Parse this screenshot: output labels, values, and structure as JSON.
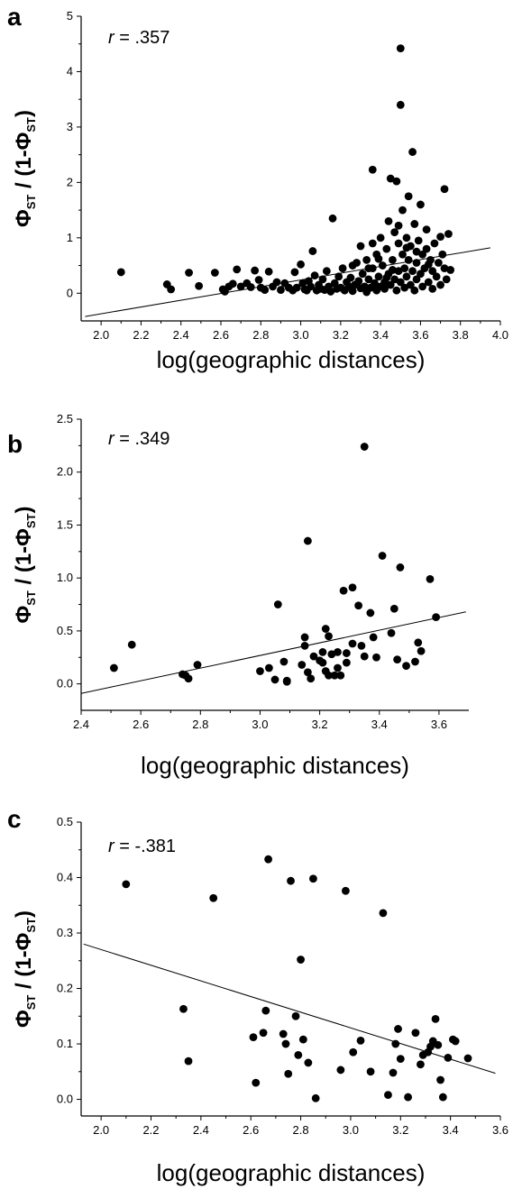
{
  "chart_data": [
    {
      "type": "scatter",
      "panel_label": "a",
      "annotation": {
        "symbol": "r",
        "value": " = .357"
      },
      "xlabel": "log(geographic distances)",
      "ylabel": {
        "main": "Φ",
        "sub": "ST",
        "mid": " / (1-Φ",
        "sub2": "ST",
        "end": ")"
      },
      "xlim": [
        1.9,
        4.0
      ],
      "ylim": [
        -0.5,
        5
      ],
      "xticks": [
        "2.0",
        "2.2",
        "2.4",
        "2.6",
        "2.8",
        "3.0",
        "3.2",
        "3.4",
        "3.6",
        "3.8",
        "4.0"
      ],
      "yticks": [
        "0",
        "1",
        "2",
        "3",
        "4",
        "5"
      ],
      "fit_line": {
        "x": [
          1.92,
          3.95
        ],
        "y": [
          -0.42,
          0.82
        ]
      },
      "points": [
        [
          2.1,
          0.38
        ],
        [
          2.33,
          0.16
        ],
        [
          2.35,
          0.07
        ],
        [
          2.44,
          0.37
        ],
        [
          2.49,
          0.13
        ],
        [
          2.57,
          0.37
        ],
        [
          2.61,
          0.07
        ],
        [
          2.62,
          0.03
        ],
        [
          2.64,
          0.12
        ],
        [
          2.66,
          0.17
        ],
        [
          2.68,
          0.43
        ],
        [
          2.7,
          0.12
        ],
        [
          2.73,
          0.18
        ],
        [
          2.75,
          0.11
        ],
        [
          2.77,
          0.41
        ],
        [
          2.79,
          0.24
        ],
        [
          2.8,
          0.1
        ],
        [
          2.82,
          0.06
        ],
        [
          2.84,
          0.39
        ],
        [
          2.86,
          0.12
        ],
        [
          2.88,
          0.2
        ],
        [
          2.9,
          0.06
        ],
        [
          2.92,
          0.18
        ],
        [
          2.94,
          0.1
        ],
        [
          2.96,
          0.05
        ],
        [
          2.97,
          0.38
        ],
        [
          2.98,
          0.1
        ],
        [
          3.0,
          0.52
        ],
        [
          3.01,
          0.18
        ],
        [
          3.02,
          0.07
        ],
        [
          3.03,
          0.05
        ],
        [
          3.04,
          0.22
        ],
        [
          3.05,
          0.12
        ],
        [
          3.06,
          0.76
        ],
        [
          3.07,
          0.32
        ],
        [
          3.08,
          0.05
        ],
        [
          3.09,
          0.15
        ],
        [
          3.1,
          0.08
        ],
        [
          3.11,
          0.25
        ],
        [
          3.12,
          0.06
        ],
        [
          3.13,
          0.4
        ],
        [
          3.14,
          0.12
        ],
        [
          3.15,
          0.03
        ],
        [
          3.16,
          1.35
        ],
        [
          3.17,
          0.18
        ],
        [
          3.18,
          0.08
        ],
        [
          3.19,
          0.3
        ],
        [
          3.2,
          0.1
        ],
        [
          3.21,
          0.45
        ],
        [
          3.22,
          0.05
        ],
        [
          3.23,
          0.2
        ],
        [
          3.24,
          0.12
        ],
        [
          3.25,
          0.28
        ],
        [
          3.26,
          0.04
        ],
        [
          3.27,
          0.15
        ],
        [
          3.28,
          0.55
        ],
        [
          3.29,
          0.22
        ],
        [
          3.3,
          0.09
        ],
        [
          3.3,
          0.85
        ],
        [
          3.31,
          0.35
        ],
        [
          3.32,
          0.12
        ],
        [
          3.33,
          0.02
        ],
        [
          3.33,
          0.6
        ],
        [
          3.34,
          0.25
        ],
        [
          3.35,
          0.1
        ],
        [
          3.36,
          2.23
        ],
        [
          3.36,
          0.45
        ],
        [
          3.37,
          0.18
        ],
        [
          3.38,
          0.7
        ],
        [
          3.38,
          0.05
        ],
        [
          3.39,
          0.3
        ],
        [
          3.4,
          0.12
        ],
        [
          3.4,
          1.0
        ],
        [
          3.41,
          0.5
        ],
        [
          3.42,
          0.2
        ],
        [
          3.42,
          0.08
        ],
        [
          3.43,
          0.8
        ],
        [
          3.44,
          0.35
        ],
        [
          3.44,
          1.3
        ],
        [
          3.45,
          2.07
        ],
        [
          3.45,
          0.15
        ],
        [
          3.46,
          0.6
        ],
        [
          3.47,
          0.25
        ],
        [
          3.47,
          1.1
        ],
        [
          3.48,
          2.02
        ],
        [
          3.48,
          0.05
        ],
        [
          3.49,
          0.4
        ],
        [
          3.49,
          0.9
        ],
        [
          3.5,
          4.42
        ],
        [
          3.5,
          3.4
        ],
        [
          3.5,
          0.2
        ],
        [
          3.51,
          0.7
        ],
        [
          3.51,
          1.5
        ],
        [
          3.52,
          0.1
        ],
        [
          3.52,
          0.45
        ],
        [
          3.53,
          1.0
        ],
        [
          3.53,
          0.3
        ],
        [
          3.54,
          0.6
        ],
        [
          3.54,
          1.75
        ],
        [
          3.55,
          0.15
        ],
        [
          3.55,
          0.85
        ],
        [
          3.56,
          0.4
        ],
        [
          3.56,
          2.55
        ],
        [
          3.57,
          1.25
        ],
        [
          3.57,
          0.05
        ],
        [
          3.58,
          0.55
        ],
        [
          3.58,
          0.25
        ],
        [
          3.59,
          0.95
        ],
        [
          3.6,
          0.35
        ],
        [
          3.6,
          1.6
        ],
        [
          3.61,
          0.7
        ],
        [
          3.61,
          0.12
        ],
        [
          3.62,
          0.45
        ],
        [
          3.63,
          0.8
        ],
        [
          3.63,
          1.15
        ],
        [
          3.64,
          0.2
        ],
        [
          3.65,
          0.6
        ],
        [
          3.66,
          0.4
        ],
        [
          3.66,
          0.08
        ],
        [
          3.67,
          0.9
        ],
        [
          3.68,
          0.3
        ],
        [
          3.69,
          0.55
        ],
        [
          3.7,
          1.02
        ],
        [
          3.7,
          0.15
        ],
        [
          3.71,
          0.7
        ],
        [
          3.72,
          1.88
        ],
        [
          3.72,
          0.45
        ],
        [
          3.73,
          0.25
        ],
        [
          3.74,
          1.07
        ],
        [
          3.75,
          0.42
        ],
        [
          3.26,
          0.5
        ],
        [
          3.34,
          0.45
        ],
        [
          3.46,
          0.42
        ],
        [
          3.58,
          0.75
        ],
        [
          3.64,
          0.52
        ],
        [
          3.39,
          0.62
        ],
        [
          3.53,
          0.82
        ],
        [
          3.43,
          0.28
        ],
        [
          3.36,
          0.9
        ],
        [
          3.49,
          1.22
        ]
      ]
    },
    {
      "type": "scatter",
      "panel_label": "b",
      "annotation": {
        "symbol": "r",
        "value": " = .349"
      },
      "xlabel": "log(geographic distances)",
      "ylabel": {
        "main": "Φ",
        "sub": "ST",
        "mid": " / (1-Φ",
        "sub2": "ST",
        "end": ")"
      },
      "xlim": [
        2.4,
        3.7
      ],
      "ylim": [
        -0.25,
        2.5
      ],
      "xticks": [
        "2.4",
        "2.6",
        "2.8",
        "3.0",
        "3.2",
        "3.4",
        "3.6"
      ],
      "yticks": [
        "0.0",
        "0.5",
        "1.0",
        "1.5",
        "2.0",
        "2.5"
      ],
      "fit_line": {
        "x": [
          2.4,
          3.69
        ],
        "y": [
          -0.09,
          0.68
        ]
      },
      "points": [
        [
          2.51,
          0.15
        ],
        [
          2.57,
          0.37
        ],
        [
          2.74,
          0.09
        ],
        [
          2.75,
          0.08
        ],
        [
          2.76,
          0.05
        ],
        [
          2.79,
          0.18
        ],
        [
          3.0,
          0.12
        ],
        [
          3.03,
          0.15
        ],
        [
          3.05,
          0.04
        ],
        [
          3.06,
          0.75
        ],
        [
          3.08,
          0.21
        ],
        [
          3.09,
          0.03
        ],
        [
          3.09,
          0.02
        ],
        [
          3.14,
          0.18
        ],
        [
          3.15,
          0.44
        ],
        [
          3.15,
          0.36
        ],
        [
          3.16,
          0.11
        ],
        [
          3.16,
          1.35
        ],
        [
          3.17,
          0.05
        ],
        [
          3.18,
          0.26
        ],
        [
          3.2,
          0.22
        ],
        [
          3.21,
          0.2
        ],
        [
          3.21,
          0.3
        ],
        [
          3.22,
          0.52
        ],
        [
          3.22,
          0.12
        ],
        [
          3.23,
          0.45
        ],
        [
          3.23,
          0.08
        ],
        [
          3.24,
          0.28
        ],
        [
          3.25,
          0.08
        ],
        [
          3.26,
          0.3
        ],
        [
          3.26,
          0.15
        ],
        [
          3.27,
          0.08
        ],
        [
          3.28,
          0.88
        ],
        [
          3.29,
          0.2
        ],
        [
          3.29,
          0.29
        ],
        [
          3.31,
          0.91
        ],
        [
          3.31,
          0.38
        ],
        [
          3.33,
          0.74
        ],
        [
          3.34,
          0.36
        ],
        [
          3.35,
          2.24
        ],
        [
          3.35,
          0.26
        ],
        [
          3.37,
          0.67
        ],
        [
          3.38,
          0.44
        ],
        [
          3.39,
          0.25
        ],
        [
          3.41,
          1.21
        ],
        [
          3.44,
          0.48
        ],
        [
          3.45,
          0.71
        ],
        [
          3.46,
          0.23
        ],
        [
          3.47,
          1.1
        ],
        [
          3.49,
          0.17
        ],
        [
          3.52,
          0.21
        ],
        [
          3.53,
          0.39
        ],
        [
          3.54,
          0.31
        ],
        [
          3.57,
          0.99
        ],
        [
          3.59,
          0.63
        ]
      ]
    },
    {
      "type": "scatter",
      "panel_label": "c",
      "annotation": {
        "symbol": "r",
        "value": " = -.381"
      },
      "xlabel": "log(geographic distances)",
      "ylabel": {
        "main": "Φ",
        "sub": "ST",
        "mid": " / (1-Φ",
        "sub2": "ST",
        "end": ")"
      },
      "xlim": [
        1.92,
        3.6
      ],
      "ylim": [
        -0.03,
        0.5
      ],
      "xticks": [
        "2.0",
        "2.2",
        "2.4",
        "2.6",
        "2.8",
        "3.0",
        "3.2",
        "3.4",
        "3.6"
      ],
      "yticks": [
        "0.0",
        "0.1",
        "0.2",
        "0.3",
        "0.4",
        "0.5"
      ],
      "fit_line": {
        "x": [
          1.93,
          3.58
        ],
        "y": [
          0.28,
          0.047
        ]
      },
      "points": [
        [
          2.1,
          0.388
        ],
        [
          2.33,
          0.163
        ],
        [
          2.35,
          0.069
        ],
        [
          2.45,
          0.363
        ],
        [
          2.61,
          0.112
        ],
        [
          2.62,
          0.03
        ],
        [
          2.65,
          0.12
        ],
        [
          2.66,
          0.16
        ],
        [
          2.67,
          0.433
        ],
        [
          2.73,
          0.118
        ],
        [
          2.74,
          0.1
        ],
        [
          2.75,
          0.046
        ],
        [
          2.76,
          0.394
        ],
        [
          2.78,
          0.15
        ],
        [
          2.79,
          0.08
        ],
        [
          2.8,
          0.252
        ],
        [
          2.81,
          0.108
        ],
        [
          2.83,
          0.066
        ],
        [
          2.85,
          0.398
        ],
        [
          2.86,
          0.002
        ],
        [
          2.96,
          0.053
        ],
        [
          2.98,
          0.376
        ],
        [
          3.01,
          0.085
        ],
        [
          3.04,
          0.106
        ],
        [
          3.08,
          0.05
        ],
        [
          3.13,
          0.336
        ],
        [
          3.15,
          0.008
        ],
        [
          3.17,
          0.048
        ],
        [
          3.18,
          0.1
        ],
        [
          3.19,
          0.127
        ],
        [
          3.2,
          0.073
        ],
        [
          3.23,
          0.004
        ],
        [
          3.26,
          0.12
        ],
        [
          3.28,
          0.063
        ],
        [
          3.29,
          0.08
        ],
        [
          3.31,
          0.085
        ],
        [
          3.32,
          0.095
        ],
        [
          3.33,
          0.105
        ],
        [
          3.34,
          0.145
        ],
        [
          3.35,
          0.098
        ],
        [
          3.36,
          0.035
        ],
        [
          3.37,
          0.004
        ],
        [
          3.39,
          0.075
        ],
        [
          3.41,
          0.108
        ],
        [
          3.42,
          0.105
        ],
        [
          3.47,
          0.074
        ]
      ]
    }
  ]
}
